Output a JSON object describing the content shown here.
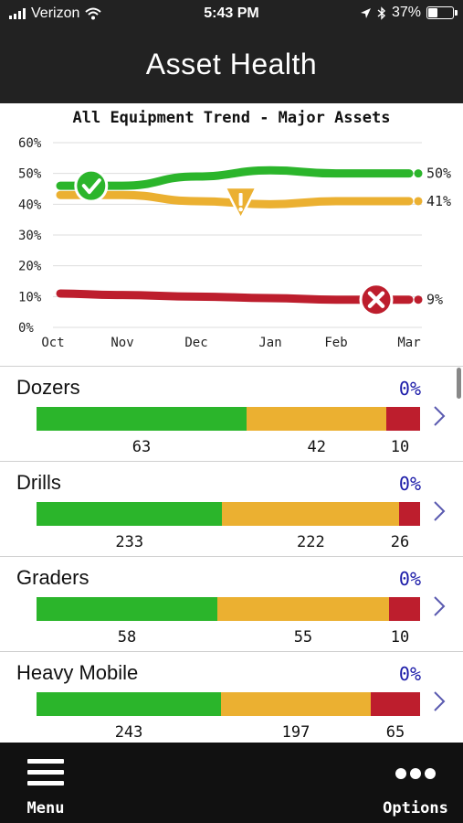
{
  "status_bar": {
    "carrier": "Verizon",
    "time": "5:43 PM",
    "battery": "37%",
    "battery_level": 0.37,
    "icons": [
      "signal-icon",
      "wifi-icon",
      "location-arrow-icon",
      "bluetooth-icon",
      "battery-icon"
    ]
  },
  "header": {
    "title": "Asset Health"
  },
  "chart_data": {
    "type": "line",
    "title": "All Equipment Trend - Major Assets",
    "x": [
      "Oct",
      "Nov",
      "Dec",
      "Jan",
      "Feb",
      "Mar"
    ],
    "ylim": [
      0,
      60
    ],
    "yticks": [
      "0%",
      "10%",
      "20%",
      "30%",
      "40%",
      "50%",
      "60%"
    ],
    "grid": true,
    "series": [
      {
        "color": "#2bb52b",
        "values": [
          46,
          46,
          49,
          51,
          50,
          50
        ],
        "end_label": "50%",
        "marker": "check-icon",
        "marker_at": 0.55
      },
      {
        "color": "#ebb031",
        "values": [
          43,
          43,
          41,
          40,
          41,
          41
        ],
        "end_label": "41%",
        "marker": "warning-icon",
        "marker_at": 2.6
      },
      {
        "color": "#bd1e2d",
        "values": [
          11,
          10.5,
          10,
          9.5,
          9,
          9
        ],
        "end_label": "9%",
        "marker": "x-circle-icon",
        "marker_at": 4.55
      }
    ]
  },
  "colors": {
    "good": "#2bb52b",
    "warn": "#ebb031",
    "bad": "#bd1e2d",
    "pct_text": "#1a1aa8"
  },
  "equipment": [
    {
      "name": "Dozers",
      "pct": "0%",
      "counts": [
        "63",
        "42",
        "10"
      ],
      "values": [
        63,
        42,
        10
      ]
    },
    {
      "name": "Drills",
      "pct": "0%",
      "counts": [
        "233",
        "222",
        "26"
      ],
      "values": [
        233,
        222,
        26
      ]
    },
    {
      "name": "Graders",
      "pct": "0%",
      "counts": [
        "58",
        "55",
        "10"
      ],
      "values": [
        58,
        55,
        10
      ]
    },
    {
      "name": "Heavy Mobile",
      "pct": "0%",
      "counts": [
        "243",
        "197",
        "65"
      ],
      "values": [
        243,
        197,
        65
      ]
    }
  ],
  "bottom_bar": {
    "menu_label": "Menu",
    "options_label": "Options"
  }
}
